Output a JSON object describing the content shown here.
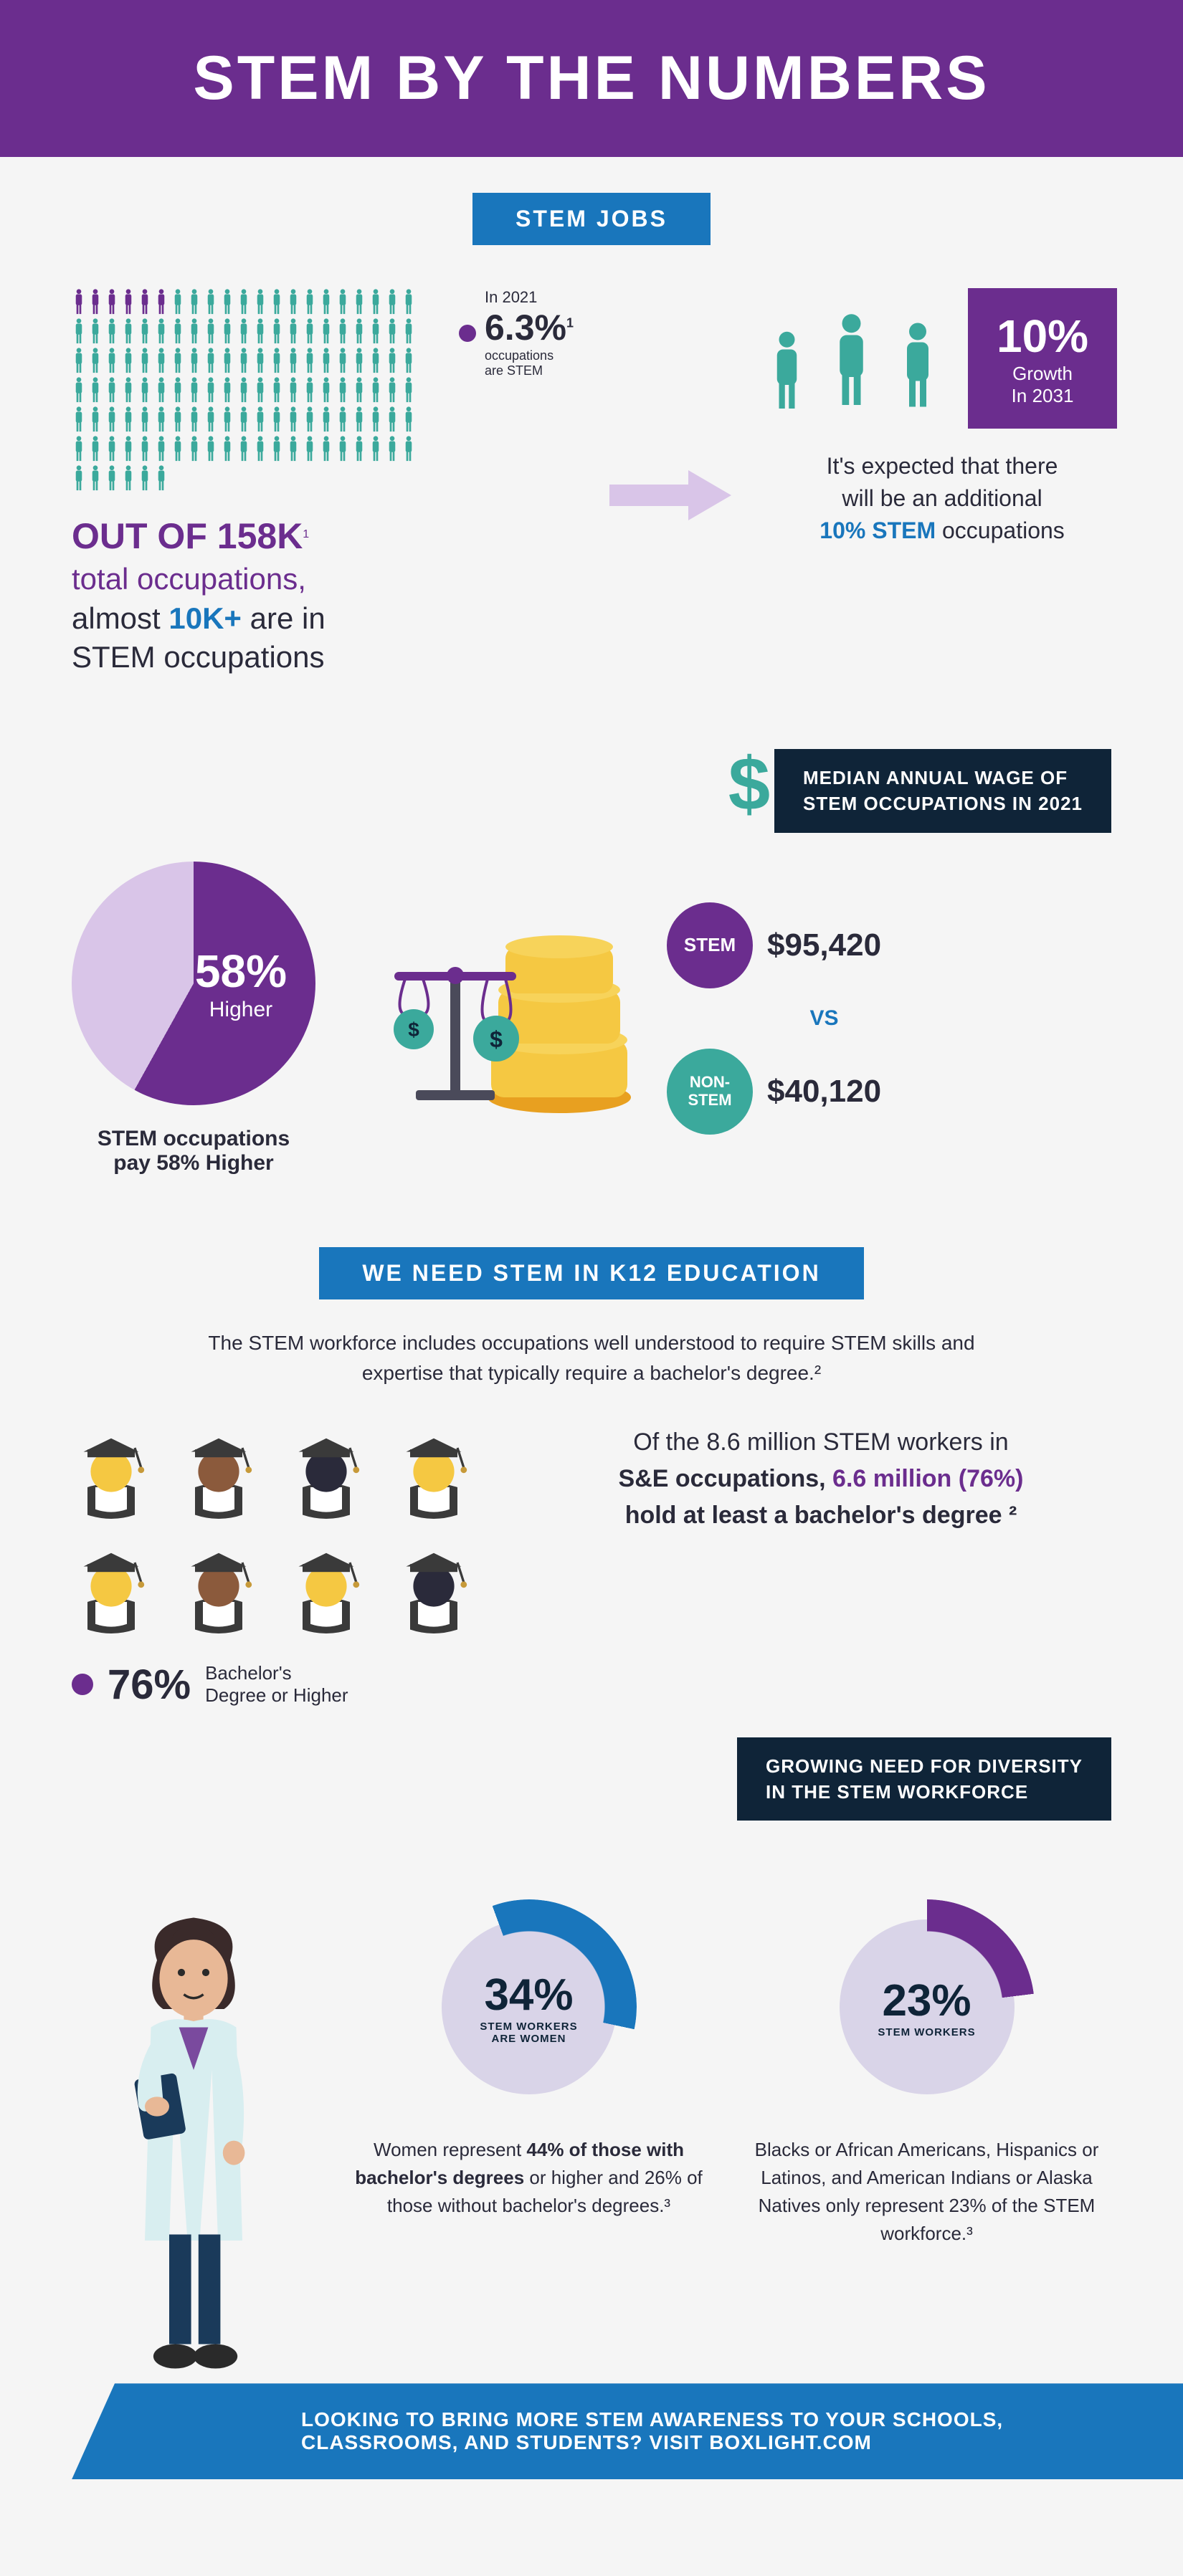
{
  "header": {
    "title": "STEM BY THE NUMBERS"
  },
  "section1": {
    "label": "STEM JOBS",
    "pictograph": {
      "total_people": 100,
      "highlighted_count": 6,
      "highlight_color": "#6b2d8e",
      "normal_color": "#3ba99c",
      "rows": 6,
      "cols_approx": 22
    },
    "stat_2021": {
      "prefix": "In 2021",
      "value": "6.3%",
      "suffix": "occupations\nare STEM",
      "footnote": "1"
    },
    "headline": {
      "line1_prefix": "OUT OF ",
      "line1_value": "158K",
      "line1_footnote": "1",
      "line2": "total occupations,",
      "line3_prefix": "almost ",
      "line3_value": "10K+",
      "line3_suffix": " are in",
      "line4": "STEM occupations"
    },
    "growth_box": {
      "value": "10%",
      "label": "Growth\nIn 2031"
    },
    "growth_caption": {
      "line1": "It's expected that there",
      "line2": "will be an additional",
      "line3_value": "10% STEM",
      "line3_suffix": " occupations"
    },
    "arrow_color": "#d9c5e8"
  },
  "wage": {
    "banner": "MEDIAN ANNUAL WAGE OF\nSTEM OCCUPATIONS IN 2021",
    "pie": {
      "value": "58%",
      "label": "Higher",
      "slice_color": "#6b2d8e",
      "rest_color": "#d9c5e8",
      "percent": 58
    },
    "pie_caption": "STEM occupations\npay 58% Higher",
    "stem_badge": "STEM",
    "stem_wage": "$95,420",
    "vs": "VS",
    "nonstem_badge": "NON-\nSTEM",
    "nonstem_wage": "$40,120",
    "dollar_color": "#3ba99c",
    "coin_color": "#f5c842"
  },
  "k12": {
    "label": "WE NEED STEM IN K12 EDUCATION",
    "description": "The STEM workforce includes occupations well understood to require STEM skills and expertise that typically require a bachelor's degree.²",
    "grads": {
      "count": 8,
      "colors": [
        "#f5c842",
        "#8b5a3c",
        "#2a2a3a",
        "#f5c842",
        "#f5c842",
        "#8b5a3c",
        "#f5c842",
        "#2a2a3a"
      ],
      "cap_color": "#3a3a3a"
    },
    "stat76": {
      "value": "76%",
      "label": "Bachelor's\nDegree or Higher"
    },
    "text": {
      "line1": "Of the 8.6 million STEM workers in",
      "line2": "S&E occupations, ",
      "line2_highlight": "6.6 million (76%)",
      "line3": "hold at least a bachelor's degree ²"
    }
  },
  "diversity": {
    "banner": "GROWING NEED FOR DIVERSITY\nIN THE STEM WORKFORCE",
    "donut34": {
      "value": "34%",
      "label": "STEM WORKERS\nARE WOMEN",
      "ring_color": "#1976bc",
      "bg_color": "#d9d4e8",
      "percent": 34
    },
    "caption34": "Women represent 44% of those with bachelor's degrees or higher and 26% of those without bachelor's degrees.³",
    "caption34_bold1": "44%",
    "caption34_bold2": "of those with bachelor's degrees",
    "donut23": {
      "value": "23%",
      "label": "STEM WORKERS",
      "ring_color": "#6b2d8e",
      "bg_color": "#d9d4e8",
      "percent": 23
    },
    "caption23": "Blacks or African Americans, Hispanics or Latinos, and American Indians or Alaska Natives only represent 23% of the STEM workforce.³"
  },
  "cta": {
    "text": "LOOKING TO BRING MORE STEM AWARENESS TO YOUR SCHOOLS, CLASSROOMS, AND STUDENTS? VISIT BOXLIGHT.COM"
  },
  "colors": {
    "purple": "#6b2d8e",
    "blue": "#1976bc",
    "teal": "#3ba99c",
    "navy": "#0f2438",
    "yellow": "#f5c842",
    "light_purple": "#d9c5e8"
  }
}
